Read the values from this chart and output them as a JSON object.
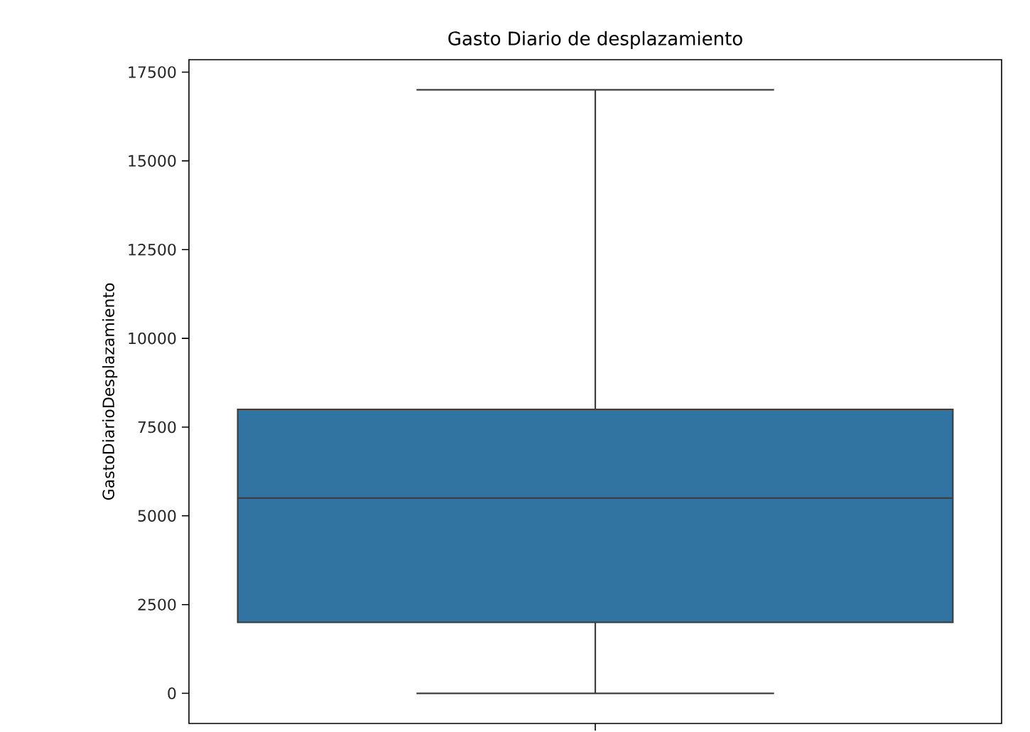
{
  "chart_data": {
    "type": "box",
    "title": "Gasto Diario de desplazamiento",
    "ylabel": "GastoDiarioDesplazamiento",
    "categories": [
      null
    ],
    "boxes": [
      {
        "low": 0,
        "q1": 2000,
        "median": 5500,
        "q3": 8000,
        "high": 17000
      }
    ],
    "color": "#3274a1",
    "ylim": [
      -850,
      17850
    ],
    "yticks": [
      0,
      2500,
      5000,
      7500,
      10000,
      12500,
      15000,
      17500
    ],
    "grid": false
  }
}
